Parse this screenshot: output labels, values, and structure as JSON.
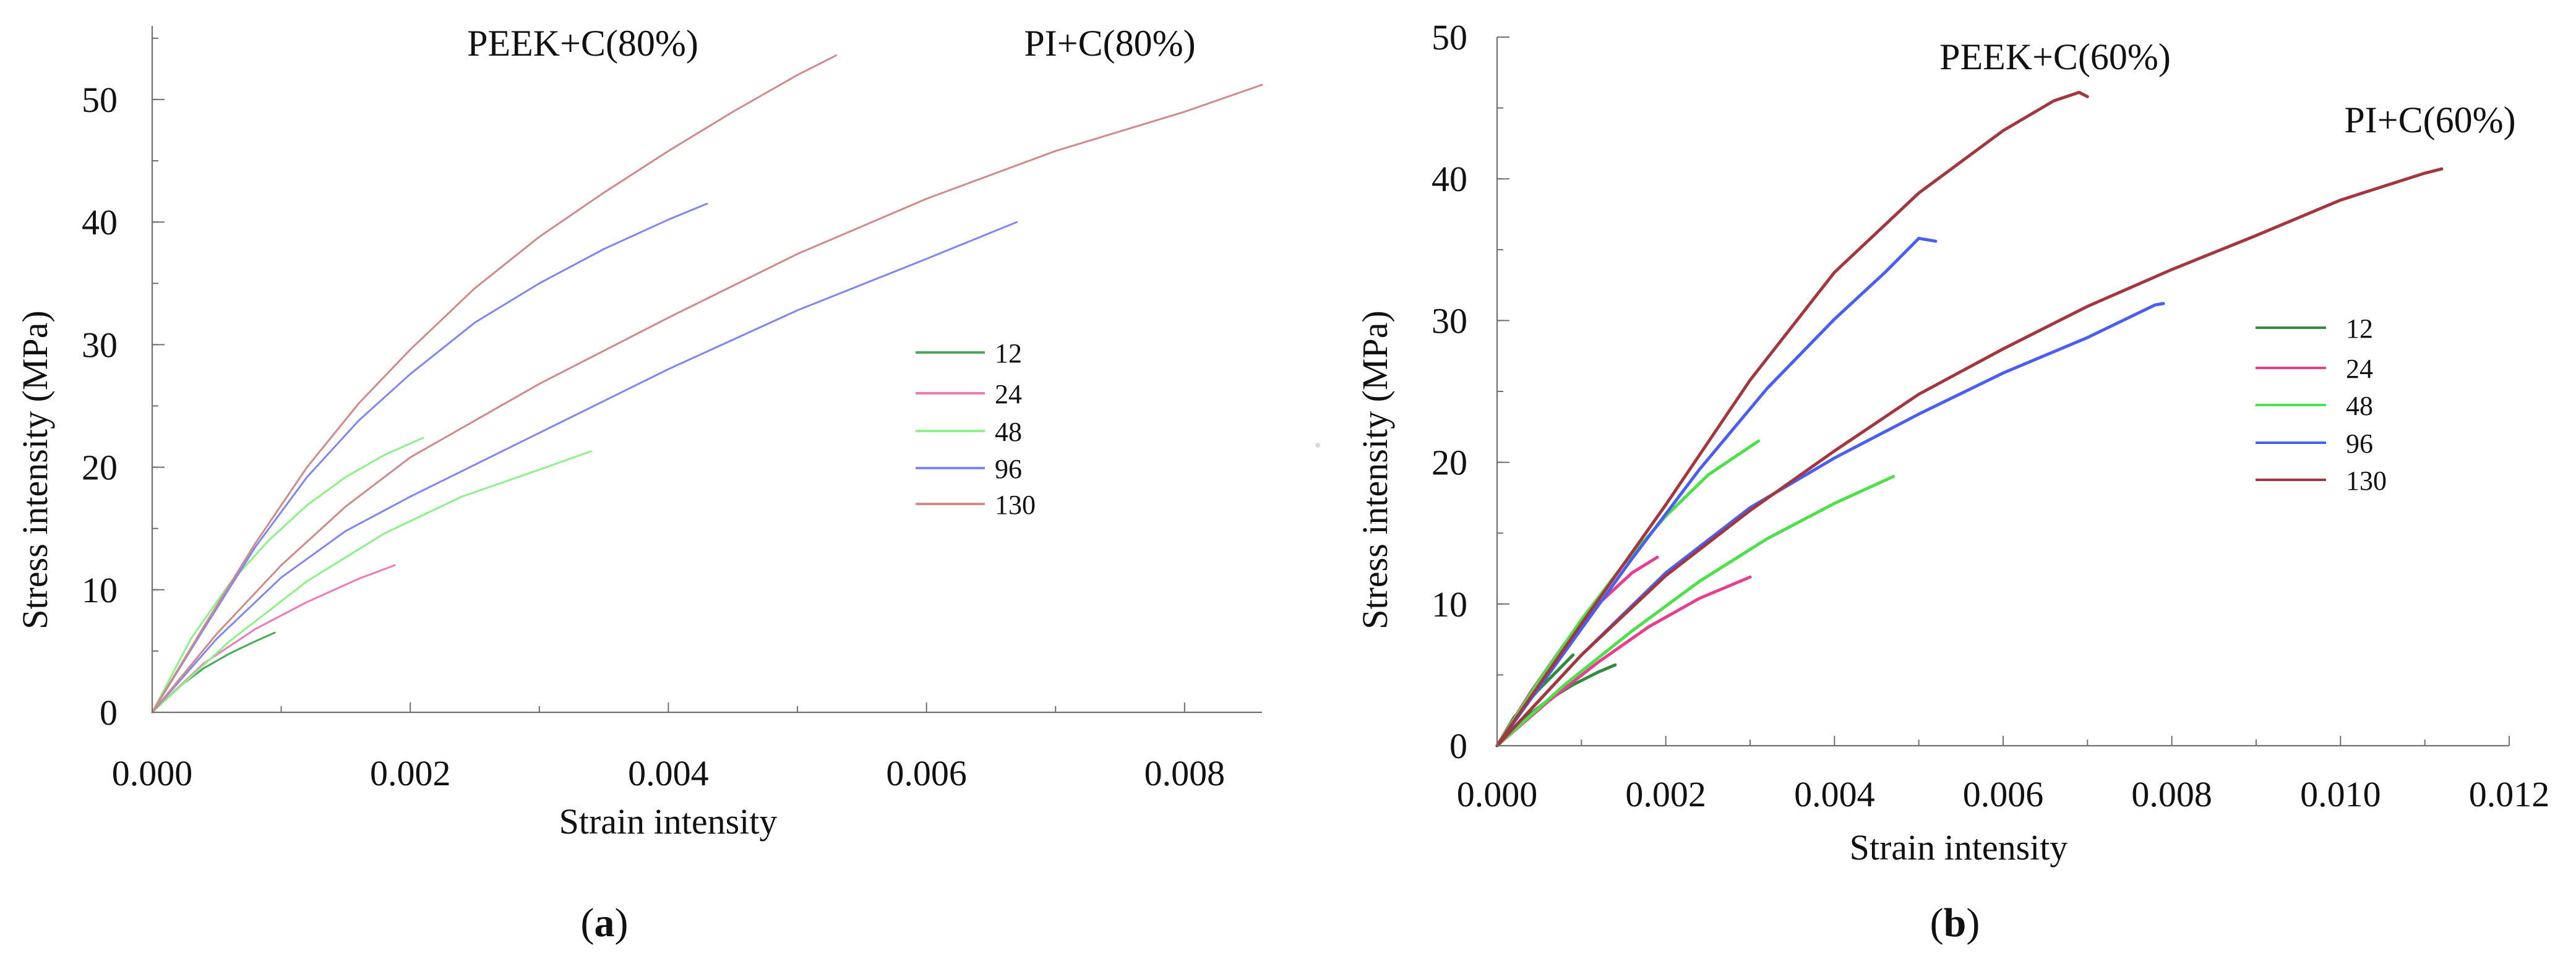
{
  "chart_data": [
    {
      "type": "line",
      "panel": "a",
      "caption_open": "(",
      "caption_letter": "a",
      "caption_close": ")",
      "title": "",
      "xlabel": "Strain intensity",
      "ylabel": "Stress intensity (MPa)",
      "xlim": [
        0,
        0.0086
      ],
      "ylim": [
        0,
        56
      ],
      "xticks": [
        "0.000",
        "0.002",
        "0.004",
        "0.006",
        "0.008"
      ],
      "xtick_values": [
        0,
        0.002,
        0.004,
        0.006,
        0.008
      ],
      "yticks": [
        "0",
        "10",
        "20",
        "30",
        "40",
        "50"
      ],
      "ytick_values": [
        0,
        10,
        20,
        30,
        40,
        50
      ],
      "grid": false,
      "legend": {
        "placement": "right-center",
        "entries": [
          {
            "label": "12",
            "color": "#4aa95a"
          },
          {
            "label": "24",
            "color": "#f07ab5"
          },
          {
            "label": "48",
            "color": "#8ef08a"
          },
          {
            "label": "96",
            "color": "#7f87f2"
          },
          {
            "label": "130",
            "color": "#cf8a8a"
          }
        ]
      },
      "annotations": [
        {
          "text": "PEEK+C(80%)",
          "x": 0.0034,
          "y": 53.3
        },
        {
          "text": "PI+C(80%)",
          "x": 0.0076,
          "y": 53.3
        }
      ],
      "series": [
        {
          "name": "12",
          "color": "#4aa95a",
          "x": [
            0,
            0.0002,
            0.0004,
            0.0006,
            0.0008,
            0.00095
          ],
          "y": [
            0,
            2.0,
            3.6,
            4.8,
            5.8,
            6.5
          ]
        },
        {
          "name": "24",
          "color": "#f07ab5",
          "x": [
            0,
            0.0004,
            0.0008,
            0.0012,
            0.0016,
            0.00188
          ],
          "y": [
            0,
            4.0,
            6.8,
            9.0,
            10.9,
            12.0
          ]
        },
        {
          "name": "48",
          "color": "#8ef08a",
          "x": [
            0,
            0.0003,
            0.0006,
            0.0009,
            0.0012,
            0.0015,
            0.0018,
            0.0021
          ],
          "y": [
            0,
            6.0,
            10.5,
            14.0,
            16.9,
            19.2,
            21.0,
            22.4
          ]
        },
        {
          "name": "48",
          "color": "#8ef08a",
          "x": [
            0,
            0.0006,
            0.0012,
            0.0018,
            0.0024,
            0.003,
            0.0034
          ],
          "y": [
            0,
            5.8,
            10.7,
            14.6,
            17.6,
            19.8,
            21.3
          ]
        },
        {
          "name": "96",
          "color": "#7f87f2",
          "x": [
            0,
            0.0004,
            0.0008,
            0.0012,
            0.0016,
            0.002,
            0.0025,
            0.003,
            0.0035,
            0.004,
            0.0043
          ],
          "y": [
            0,
            6.8,
            13.5,
            19.2,
            23.8,
            27.6,
            31.8,
            35.0,
            37.8,
            40.2,
            41.5
          ]
        },
        {
          "name": "96",
          "color": "#7f87f2",
          "x": [
            0,
            0.0005,
            0.001,
            0.0015,
            0.002,
            0.003,
            0.004,
            0.005,
            0.006,
            0.0067
          ],
          "y": [
            0,
            6.0,
            11.0,
            14.8,
            17.6,
            22.8,
            28.0,
            32.8,
            37.0,
            40.0
          ]
        },
        {
          "name": "130",
          "color": "#cf8a8a",
          "x": [
            0,
            0.0004,
            0.0008,
            0.0012,
            0.0016,
            0.002,
            0.0025,
            0.003,
            0.0035,
            0.004,
            0.0045,
            0.005,
            0.0053
          ],
          "y": [
            0,
            7.0,
            13.8,
            20.0,
            25.2,
            29.6,
            34.6,
            38.8,
            42.4,
            45.8,
            49.0,
            52.0,
            53.6
          ]
        },
        {
          "name": "130",
          "color": "#cf8a8a",
          "x": [
            0,
            0.0005,
            0.001,
            0.0015,
            0.002,
            0.003,
            0.004,
            0.005,
            0.006,
            0.007,
            0.008,
            0.0086
          ],
          "y": [
            0,
            6.4,
            12.0,
            16.8,
            20.8,
            26.8,
            32.2,
            37.4,
            41.9,
            45.8,
            49.0,
            51.2
          ]
        }
      ]
    },
    {
      "type": "line",
      "panel": "b",
      "caption_open": "(",
      "caption_letter": "b",
      "caption_close": ")",
      "title": "",
      "xlabel": "Strain intensity",
      "ylabel": "Stress intensity (MPa)",
      "xlim": [
        0,
        0.012
      ],
      "ylim": [
        0,
        50
      ],
      "xticks": [
        "0.000",
        "0.002",
        "0.004",
        "0.006",
        "0.008",
        "0.010",
        "0.012"
      ],
      "xtick_values": [
        0,
        0.002,
        0.004,
        0.006,
        0.008,
        0.01,
        0.012
      ],
      "yticks": [
        "0",
        "10",
        "20",
        "30",
        "40",
        "50"
      ],
      "ytick_values": [
        0,
        10,
        20,
        30,
        40,
        50
      ],
      "grid": false,
      "legend": {
        "placement": "right-center",
        "entries": [
          {
            "label": "12",
            "color": "#2f8b3d"
          },
          {
            "label": "24",
            "color": "#e63f8d"
          },
          {
            "label": "48",
            "color": "#4ee04a"
          },
          {
            "label": "96",
            "color": "#4b5ef4"
          },
          {
            "label": "130",
            "color": "#a3373f"
          }
        ]
      },
      "annotations": [
        {
          "text": "PEEK+C(60%)",
          "x": 0.0061,
          "y": 48.3
        },
        {
          "text": "PI+C(60%)",
          "x": 0.0108,
          "y": 43.0
        }
      ],
      "series": [
        {
          "name": "12",
          "color": "#2f8b3d",
          "x": [
            0,
            0.0003,
            0.0006,
            0.0009,
            0.0012,
            0.0014
          ],
          "y": [
            0,
            1.8,
            3.2,
            4.3,
            5.2,
            5.7
          ]
        },
        {
          "name": "12",
          "color": "#2f8b3d",
          "x": [
            0,
            0.0002,
            0.0005,
            0.0008,
            0.0009
          ],
          "y": [
            0,
            2.0,
            4.0,
            5.8,
            6.4
          ]
        },
        {
          "name": "24",
          "color": "#e63f8d",
          "x": [
            0,
            0.0004,
            0.0008,
            0.0012,
            0.0016,
            0.0019
          ],
          "y": [
            0,
            3.8,
            7.2,
            10.0,
            12.2,
            13.3
          ]
        },
        {
          "name": "24",
          "color": "#e63f8d",
          "x": [
            0,
            0.0006,
            0.0012,
            0.0018,
            0.0024,
            0.003
          ],
          "y": [
            0,
            3.1,
            5.9,
            8.4,
            10.4,
            11.9
          ]
        },
        {
          "name": "48",
          "color": "#4ee04a",
          "x": [
            0,
            0.0005,
            0.001,
            0.0015,
            0.002,
            0.0025,
            0.0031
          ],
          "y": [
            0,
            4.6,
            8.9,
            12.8,
            16.2,
            19.1,
            21.5
          ]
        },
        {
          "name": "48",
          "color": "#4ee04a",
          "x": [
            0,
            0.0008,
            0.0016,
            0.0024,
            0.0032,
            0.004,
            0.0047
          ],
          "y": [
            0,
            4.3,
            8.1,
            11.6,
            14.6,
            17.1,
            19.0
          ]
        },
        {
          "name": "96",
          "color": "#4b5ef4",
          "x": [
            0,
            0.0008,
            0.0016,
            0.0024,
            0.0032,
            0.004,
            0.0046,
            0.005,
            0.0052
          ],
          "y": [
            0,
            6.6,
            13.2,
            19.5,
            25.2,
            30.1,
            33.4,
            35.8,
            35.6
          ]
        },
        {
          "name": "96",
          "color": "#4b5ef4",
          "x": [
            0,
            0.001,
            0.002,
            0.003,
            0.004,
            0.005,
            0.006,
            0.007,
            0.0078,
            0.0079
          ],
          "y": [
            0,
            6.4,
            12.2,
            16.8,
            20.3,
            23.4,
            26.3,
            28.8,
            31.1,
            31.2
          ]
        },
        {
          "name": "130",
          "color": "#a3373f",
          "x": [
            0,
            0.001,
            0.002,
            0.003,
            0.004,
            0.005,
            0.006,
            0.0066,
            0.0069,
            0.007
          ],
          "y": [
            0,
            8.6,
            17.0,
            25.8,
            33.4,
            39.0,
            43.4,
            45.5,
            46.1,
            45.8
          ]
        },
        {
          "name": "130",
          "color": "#a3373f",
          "x": [
            0,
            0.001,
            0.002,
            0.003,
            0.004,
            0.005,
            0.006,
            0.007,
            0.008,
            0.009,
            0.01,
            0.011,
            0.0112
          ],
          "y": [
            0,
            6.4,
            12.0,
            16.6,
            20.8,
            24.8,
            28.0,
            31.0,
            33.6,
            36.0,
            38.5,
            40.4,
            40.7
          ]
        }
      ]
    }
  ]
}
